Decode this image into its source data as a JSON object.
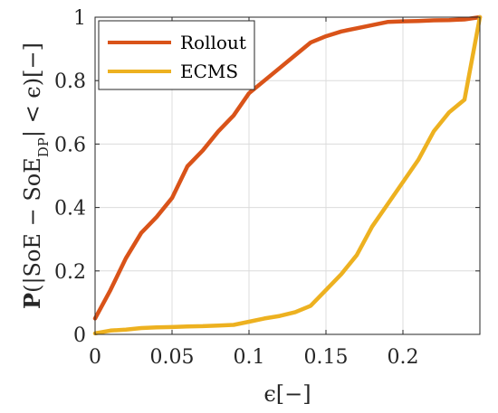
{
  "chart_data": {
    "type": "line",
    "xlabel": "ϵ[−]",
    "ylabel": "P(|SoE − SoE_DP| < ϵ)[−]",
    "ylabel_parts": {
      "p": "P",
      "body": "(|SoE − SoE",
      "sub": "DP",
      "tail": "| < ϵ)[−]"
    },
    "xlim": [
      0,
      0.25
    ],
    "ylim": [
      0,
      1
    ],
    "xticks": [
      0,
      0.05,
      0.1,
      0.15,
      0.2
    ],
    "xtick_labels": [
      "0",
      "0.05",
      "0.1",
      "0.15",
      "0.2"
    ],
    "yticks": [
      0,
      0.2,
      0.4,
      0.6,
      0.8,
      1
    ],
    "ytick_labels": [
      "0",
      "0.2",
      "0.4",
      "0.6",
      "0.8",
      "1"
    ],
    "grid": true,
    "legend_position": "top-left",
    "series": [
      {
        "name": "Rollout",
        "color": "#D95319",
        "x": [
          0,
          0.01,
          0.02,
          0.03,
          0.04,
          0.05,
          0.06,
          0.07,
          0.08,
          0.09,
          0.1,
          0.11,
          0.12,
          0.13,
          0.14,
          0.15,
          0.16,
          0.17,
          0.18,
          0.19,
          0.2,
          0.21,
          0.22,
          0.23,
          0.24,
          0.25
        ],
        "y": [
          0.05,
          0.14,
          0.24,
          0.32,
          0.37,
          0.43,
          0.53,
          0.58,
          0.64,
          0.69,
          0.76,
          0.8,
          0.84,
          0.88,
          0.92,
          0.94,
          0.955,
          0.965,
          0.975,
          0.985,
          0.987,
          0.988,
          0.99,
          0.991,
          0.993,
          1.0
        ]
      },
      {
        "name": "ECMS",
        "color": "#EDB120",
        "x": [
          0,
          0.01,
          0.02,
          0.03,
          0.04,
          0.05,
          0.06,
          0.07,
          0.08,
          0.09,
          0.1,
          0.11,
          0.12,
          0.13,
          0.14,
          0.15,
          0.16,
          0.17,
          0.18,
          0.19,
          0.2,
          0.21,
          0.22,
          0.23,
          0.24,
          0.25
        ],
        "y": [
          0.003,
          0.012,
          0.015,
          0.02,
          0.022,
          0.023,
          0.025,
          0.026,
          0.028,
          0.03,
          0.04,
          0.05,
          0.058,
          0.07,
          0.09,
          0.14,
          0.19,
          0.25,
          0.34,
          0.41,
          0.48,
          0.55,
          0.64,
          0.7,
          0.74,
          1.0
        ]
      }
    ]
  }
}
